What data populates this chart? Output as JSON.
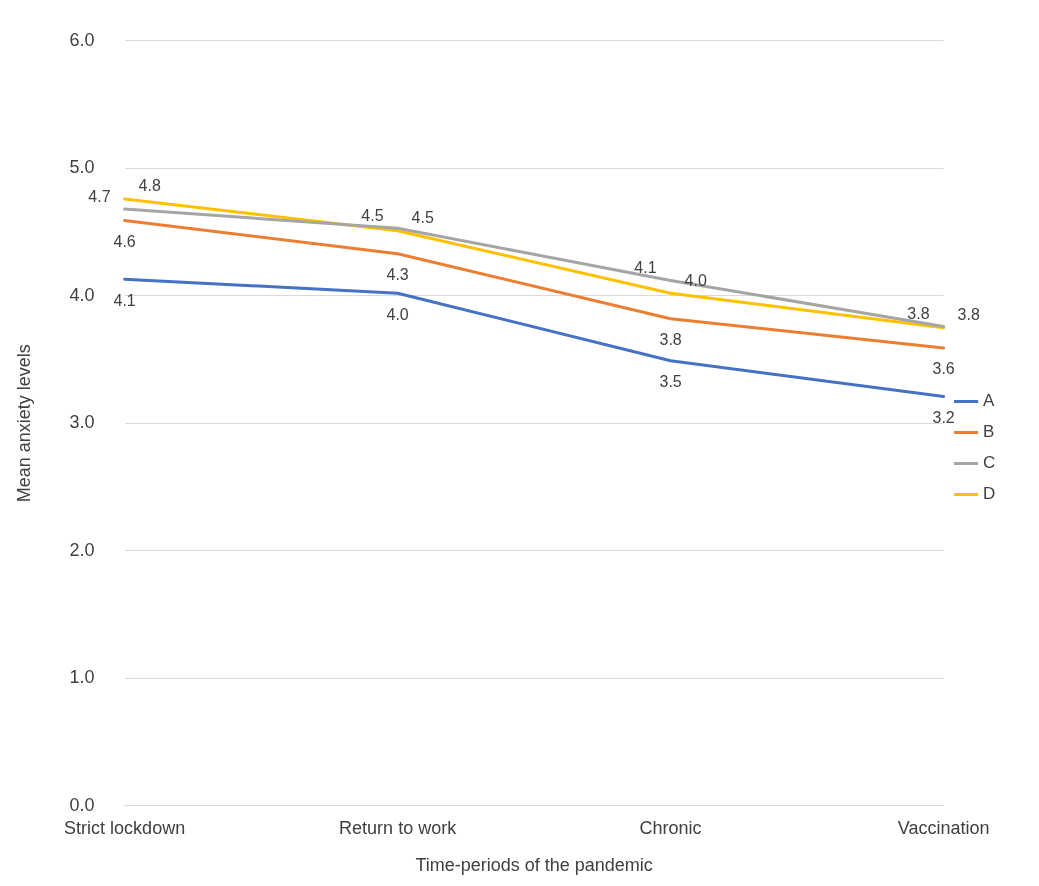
{
  "chart_data": {
    "type": "line",
    "xlabel": "Time-periods of the pandemic",
    "ylabel": "Mean anxiety levels",
    "categories": [
      "Strict lockdown",
      "Return to work",
      "Chronic",
      "Vaccination"
    ],
    "series": [
      {
        "name": "A",
        "color": "#4472c4",
        "values": [
          4.13,
          4.02,
          3.49,
          3.21
        ],
        "value_labels": [
          "4.1",
          "4.0",
          "3.5",
          "3.2"
        ]
      },
      {
        "name": "B",
        "color": "#ed7d31",
        "values": [
          4.59,
          4.33,
          3.82,
          3.59
        ],
        "value_labels": [
          "4.6",
          "4.3",
          "3.8",
          "3.6"
        ]
      },
      {
        "name": "C",
        "color": "#a5a5a5",
        "values": [
          4.68,
          4.53,
          4.12,
          3.76
        ],
        "value_labels": [
          "4.7",
          "4.5",
          "4.1",
          "3.8"
        ]
      },
      {
        "name": "D",
        "color": "#ffc000",
        "values": [
          4.76,
          4.51,
          4.02,
          3.75
        ],
        "value_labels": [
          "4.8",
          "4.5",
          "4.0",
          "3.8"
        ]
      }
    ],
    "ylim": [
      0,
      6
    ],
    "yticks": [
      {
        "value": 0,
        "label": "0.0"
      },
      {
        "value": 1,
        "label": "1.0"
      },
      {
        "value": 2,
        "label": "2.0"
      },
      {
        "value": 3,
        "label": "3.0"
      },
      {
        "value": 4,
        "label": "4.0"
      },
      {
        "value": 5,
        "label": "5.0"
      },
      {
        "value": 6,
        "label": "6.0"
      }
    ],
    "grid": "y",
    "legend": "right",
    "marker": "none",
    "line_style": "solid"
  }
}
